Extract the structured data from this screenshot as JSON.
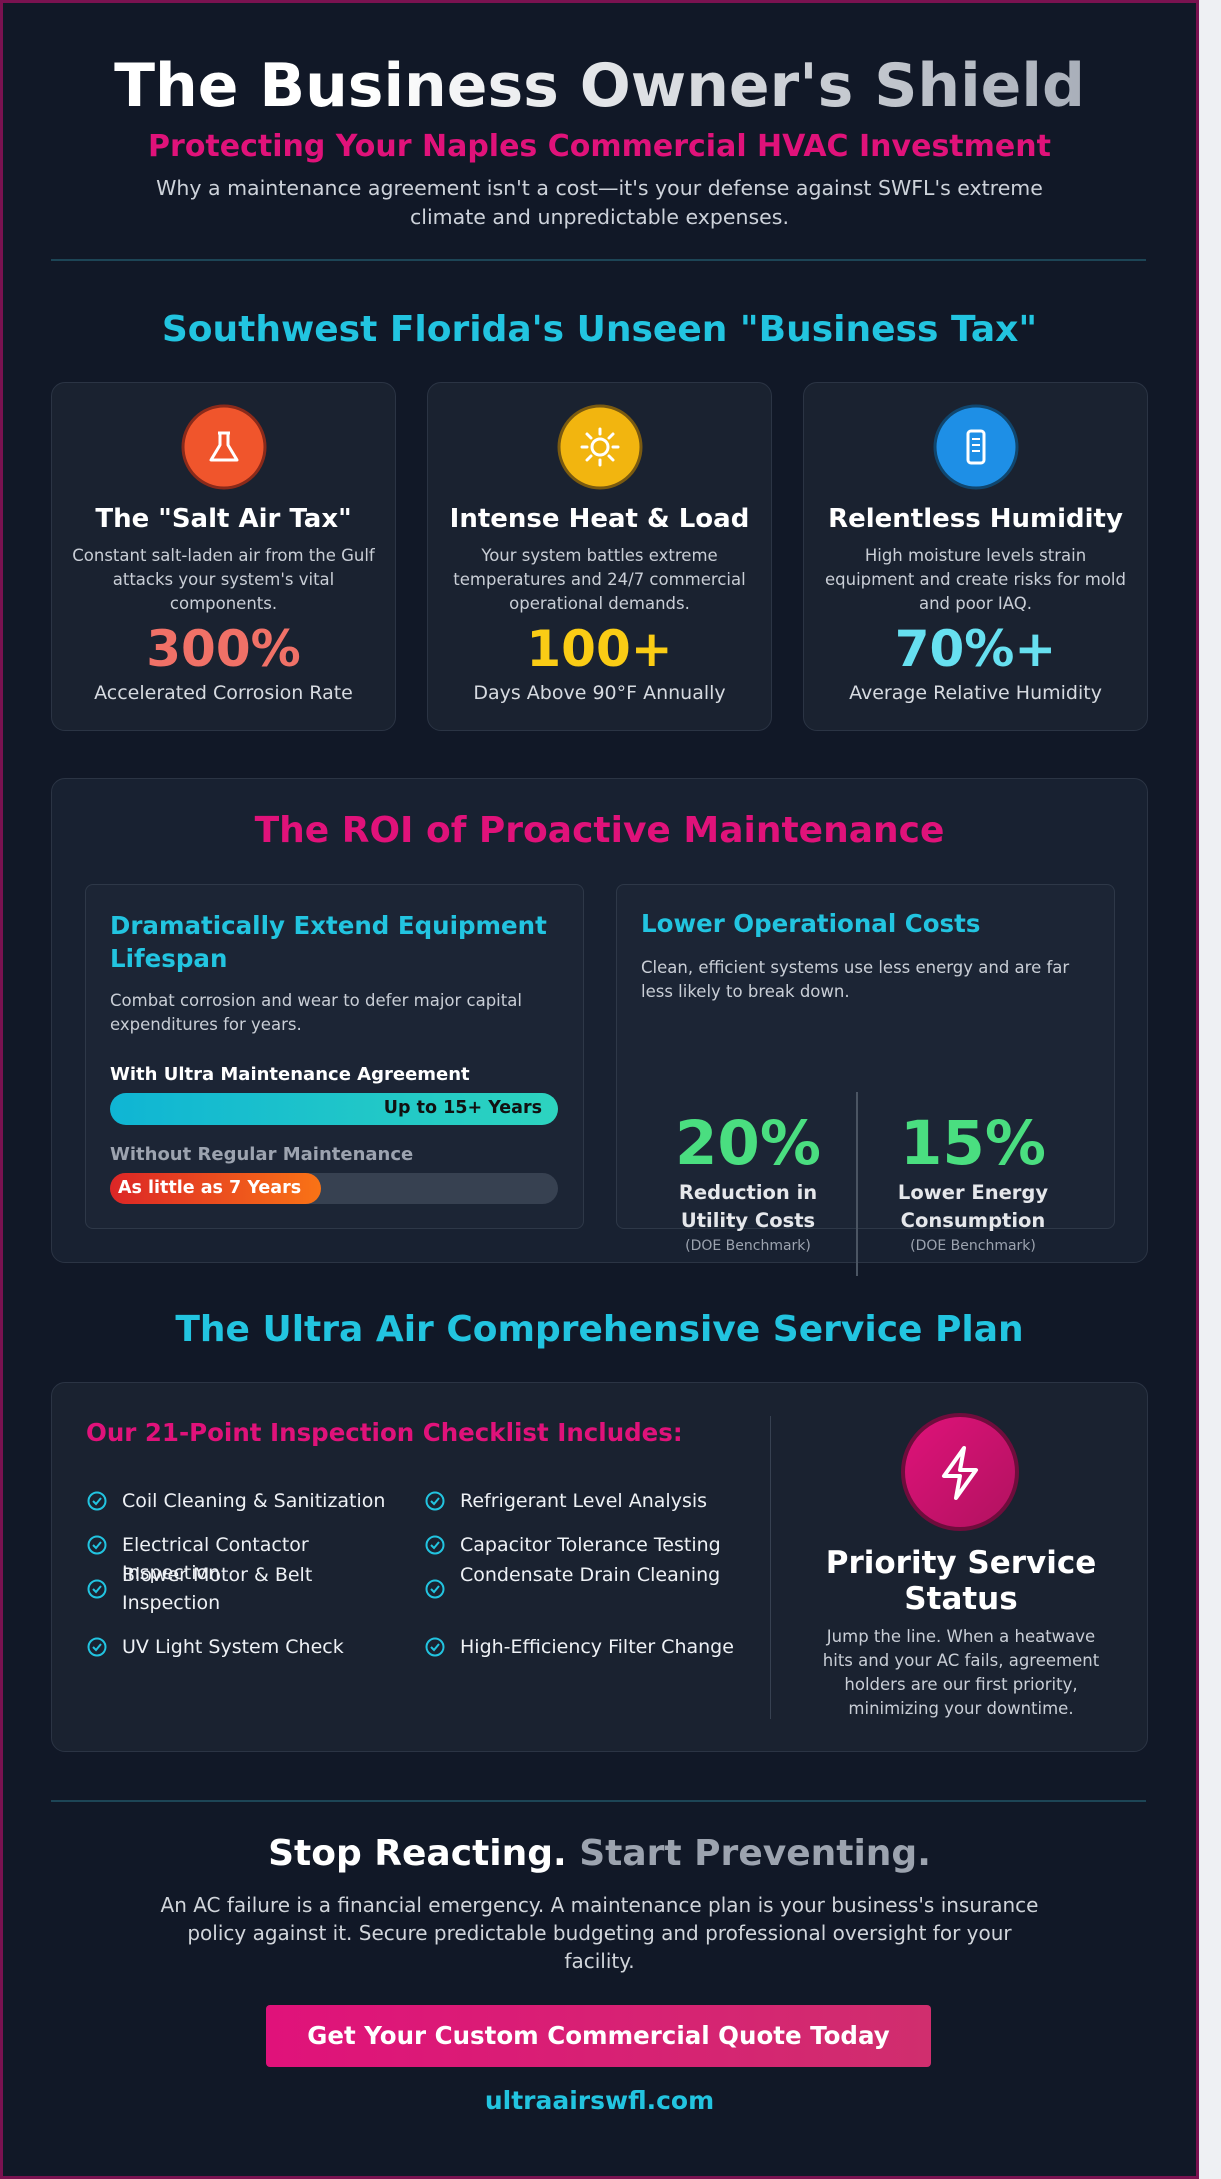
{
  "header": {
    "title": "The Business Owner's Shield",
    "subtitle": "Protecting Your Naples Commercial HVAC Investment",
    "intro": "Why a maintenance agreement isn't a cost—it's your defense against SWFL's extreme climate and unpredictable expenses."
  },
  "climate": {
    "heading": "Southwest Florida's Unseen \"Business Tax\"",
    "cards": [
      {
        "title": "The \"Salt Air Tax\"",
        "text": "Constant salt-laden air from the Gulf attacks your system's vital components.",
        "stat": "300%",
        "stat_label": "Accelerated Corrosion Rate"
      },
      {
        "title": "Intense Heat & Load",
        "text": "Your system battles extreme temperatures and 24/7 commercial operational demands.",
        "stat": "100+",
        "stat_label": "Days Above 90°F Annually"
      },
      {
        "title": "Relentless Humidity",
        "text": "High moisture levels strain equipment and create risks for mold and poor IAQ.",
        "stat": "70%+",
        "stat_label": "Average Relative Humidity"
      }
    ]
  },
  "roi": {
    "heading": "The ROI of Proactive Maintenance",
    "lifespan": {
      "title": "Dramatically Extend Equipment Lifespan",
      "text": "Combat corrosion and wear to defer major capital expenditures for years.",
      "with_label": "With Ultra Maintenance Agreement",
      "with_bar": "Up to 15+ Years",
      "without_label": "Without Regular Maintenance",
      "without_bar": "As little as 7 Years"
    },
    "costs": {
      "title": "Lower Operational Costs",
      "text": "Clean, efficient systems use less energy and are far less likely to break down.",
      "stats": [
        {
          "value": "20%",
          "label": "Reduction in Utility Costs",
          "note": "(DOE Benchmark)"
        },
        {
          "value": "15%",
          "label": "Lower Energy Consumption",
          "note": "(DOE Benchmark)"
        }
      ]
    }
  },
  "plan": {
    "heading": "The Ultra Air Comprehensive Service Plan",
    "checklist_title": "Our 21-Point Inspection Checklist Includes:",
    "items": [
      "Coil Cleaning & Sanitization",
      "Refrigerant Level Analysis",
      "Electrical Contactor Inspection",
      "Capacitor Tolerance Testing",
      "Blower Motor & Belt Inspection",
      "Condensate Drain Cleaning",
      "UV Light System Check",
      "High-Efficiency Filter Change"
    ],
    "priority": {
      "title": "Priority Service Status",
      "text": "Jump the line. When a heatwave hits and your AC fails, agreement holders are our first priority, minimizing your downtime."
    }
  },
  "cta": {
    "title_a": "Stop Reacting.",
    "title_b": "Start Preventing.",
    "text": "An AC failure is a financial emergency. A maintenance plan is your business's insurance policy against it. Secure predictable budgeting and professional oversight for your facility.",
    "button": "Get Your Custom Commercial Quote Today",
    "url": "ultraairswfl.com"
  }
}
